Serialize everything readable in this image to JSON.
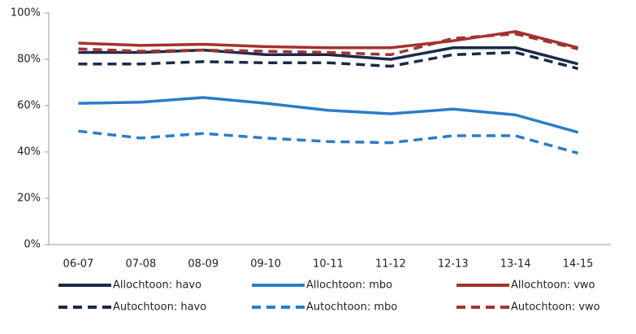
{
  "chart_data": {
    "type": "line",
    "categories": [
      "06-07",
      "07-08",
      "08-09",
      "09-10",
      "10-11",
      "11-12",
      "12-13",
      "13-14",
      "14-15"
    ],
    "series": [
      {
        "name": "Allochtoon: havo",
        "color": "#1c2a48",
        "style": "solid",
        "values": [
          83,
          83,
          84,
          82,
          82,
          80,
          85,
          85,
          78
        ]
      },
      {
        "name": "Allochtoon: mbo",
        "color": "#2a7dc8",
        "style": "solid",
        "values": [
          61,
          61.5,
          63.5,
          61,
          58,
          56.5,
          58.5,
          56,
          48.5
        ]
      },
      {
        "name": "Allochtoon: vwo",
        "color": "#a3322f",
        "style": "solid",
        "values": [
          87,
          86,
          86.5,
          85.5,
          85,
          85,
          88,
          92,
          85
        ]
      },
      {
        "name": "Autochtoon: havo",
        "color": "#1c2a48",
        "style": "dashed",
        "values": [
          78,
          78,
          79,
          78.5,
          78.5,
          77,
          82,
          83,
          76
        ]
      },
      {
        "name": "Autochtoon: mbo",
        "color": "#2a7dc8",
        "style": "dashed",
        "values": [
          49,
          46,
          48,
          46,
          44.5,
          44,
          47,
          47,
          39.5
        ]
      },
      {
        "name": "Autochtoon: vwo",
        "color": "#a3322f",
        "style": "dashed",
        "values": [
          84.5,
          83.5,
          84,
          83.5,
          83,
          82,
          89,
          91,
          84.5
        ]
      }
    ],
    "ylim": [
      0,
      100
    ],
    "yticks": [
      {
        "value": 0,
        "label": "0%"
      },
      {
        "value": 20,
        "label": "20%"
      },
      {
        "value": 40,
        "label": "40%"
      },
      {
        "value": 60,
        "label": "60%"
      },
      {
        "value": 80,
        "label": "80%"
      },
      {
        "value": 100,
        "label": "100%"
      }
    ],
    "grid": false,
    "legend": "bottom"
  }
}
